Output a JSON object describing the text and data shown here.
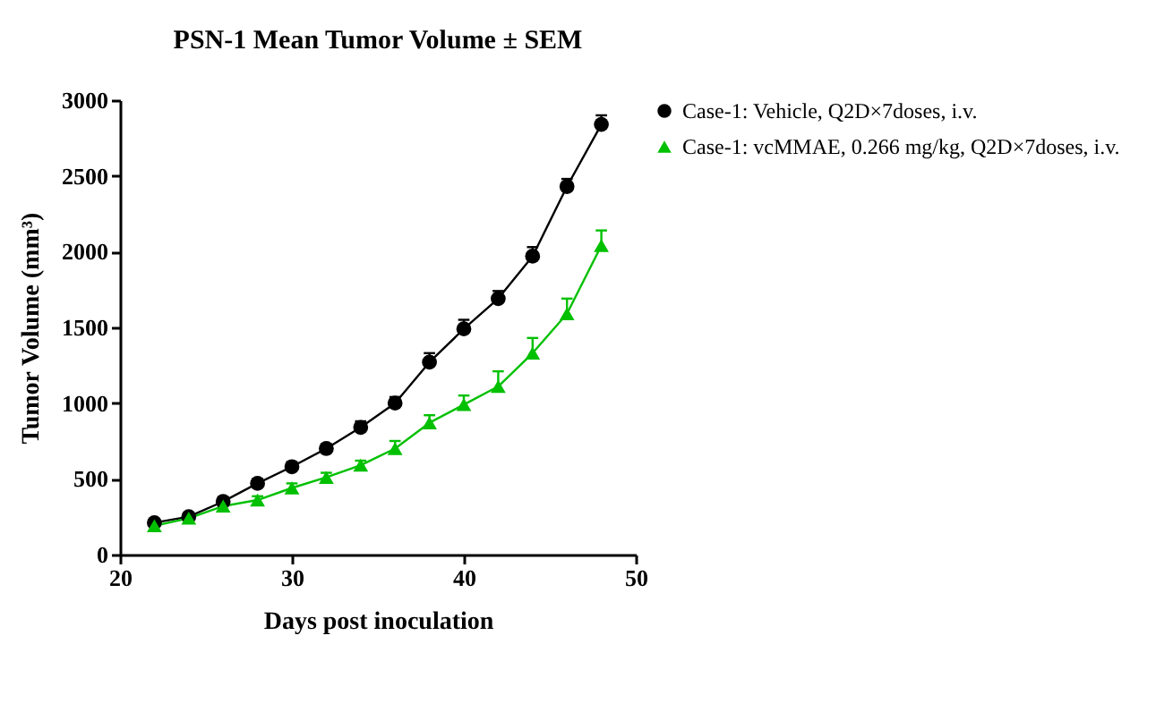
{
  "chart_data": {
    "type": "line",
    "title": "PSN-1 Mean Tumor Volume ± SEM",
    "xlabel": "Days post inoculation",
    "ylabel": "Tumor Volume (mm³)",
    "x": [
      22,
      24,
      26,
      28,
      30,
      32,
      34,
      36,
      38,
      40,
      42,
      44,
      46,
      48
    ],
    "series": [
      {
        "name": "Case-1: Vehicle, Q2D×7doses, i.v.",
        "color": "#000000",
        "marker": "circle",
        "values": [
          210,
          250,
          350,
          470,
          580,
          700,
          840,
          1000,
          1270,
          1490,
          1690,
          1970,
          2430,
          2840
        ],
        "errors": [
          null,
          null,
          30,
          30,
          30,
          30,
          40,
          40,
          60,
          60,
          50,
          60,
          50,
          60
        ]
      },
      {
        "name": "Case-1: vcMMAE, 0.266 mg/kg, Q2D×7doses, i.v.",
        "color": "#00c000",
        "marker": "triangle",
        "values": [
          190,
          240,
          320,
          360,
          440,
          510,
          590,
          700,
          870,
          990,
          1110,
          1330,
          1590,
          2040
        ],
        "errors": [
          null,
          null,
          25,
          25,
          30,
          30,
          30,
          50,
          50,
          60,
          100,
          100,
          100,
          100
        ]
      }
    ],
    "xlim": [
      20,
      50
    ],
    "xticks": [
      20,
      30,
      40,
      50
    ],
    "ylim": [
      0,
      3000
    ],
    "yticks": [
      0,
      500,
      1000,
      1500,
      2000,
      2500,
      3000
    ],
    "grid": false,
    "legend": "right",
    "line_style": "solid"
  }
}
